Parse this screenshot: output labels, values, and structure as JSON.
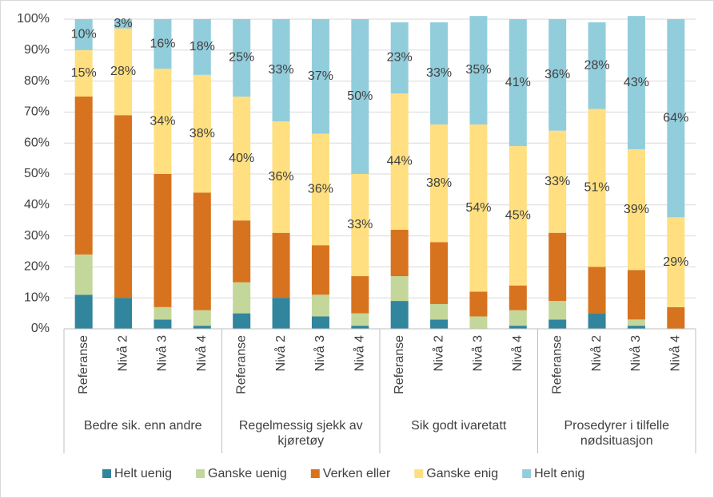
{
  "chart_data": {
    "type": "stacked_bar",
    "groups": [
      {
        "name": "Bedre sik. enn andre",
        "categories": [
          "Referanse",
          "Nivå 2",
          "Nivå 3",
          "Nivå 4"
        ]
      },
      {
        "name": "Regelmessig sjekk av kjøretøy",
        "categories": [
          "Referanse",
          "Nivå 2",
          "Nivå 3",
          "Nivå 4"
        ]
      },
      {
        "name": "Sik godt ivaretatt",
        "categories": [
          "Referanse",
          "Nivå 2",
          "Nivå 3",
          "Nivå 4"
        ]
      },
      {
        "name": "Prosedyrer i tilfelle nødsituasjon",
        "categories": [
          "Referanse",
          "Nivå 2",
          "Nivå 3",
          "Nivå 4"
        ]
      }
    ],
    "series": [
      {
        "name": "Helt uenig",
        "color": "#31859c",
        "values": [
          11,
          10,
          3,
          1,
          5,
          10,
          4,
          1,
          9,
          3,
          0,
          1,
          3,
          5,
          1,
          0
        ]
      },
      {
        "name": "Ganske uenig",
        "color": "#c4d79b",
        "values": [
          13,
          0,
          4,
          5,
          10,
          0,
          7,
          4,
          8,
          5,
          4,
          5,
          6,
          0,
          2,
          0
        ]
      },
      {
        "name": "Verken eller",
        "color": "#d7731e",
        "values": [
          51,
          59,
          43,
          38,
          20,
          21,
          16,
          12,
          15,
          20,
          8,
          8,
          22,
          15,
          16,
          7
        ]
      },
      {
        "name": "Ganske enig",
        "color": "#ffdf7f",
        "values": [
          15,
          28,
          34,
          38,
          40,
          36,
          36,
          33,
          44,
          38,
          54,
          45,
          33,
          51,
          39,
          29
        ],
        "value_labels": [
          "15%",
          "28%",
          "34%",
          "38%",
          "40%",
          "36%",
          "36%",
          "33%",
          "44%",
          "38%",
          "54%",
          "45%",
          "33%",
          "51%",
          "39%",
          "29%"
        ]
      },
      {
        "name": "Helt enig",
        "color": "#92cddc",
        "values": [
          10,
          3,
          16,
          18,
          25,
          33,
          37,
          50,
          23,
          33,
          35,
          41,
          36,
          28,
          43,
          64
        ],
        "value_labels": [
          "10%",
          "3%",
          "16%",
          "18%",
          "25%",
          "33%",
          "37%",
          "50%",
          "23%",
          "33%",
          "35%",
          "41%",
          "36%",
          "28%",
          "43%",
          "64%"
        ]
      }
    ],
    "ylim": [
      0,
      100
    ],
    "yticks": [
      {
        "value": 0,
        "label": "0%"
      },
      {
        "value": 10,
        "label": "10%"
      },
      {
        "value": 20,
        "label": "20%"
      },
      {
        "value": 30,
        "label": "30%"
      },
      {
        "value": 40,
        "label": "40%"
      },
      {
        "value": 50,
        "label": "50%"
      },
      {
        "value": 60,
        "label": "60%"
      },
      {
        "value": 70,
        "label": "70%"
      },
      {
        "value": 80,
        "label": "80%"
      },
      {
        "value": 90,
        "label": "90%"
      },
      {
        "value": 100,
        "label": "100%"
      }
    ],
    "grid": true,
    "legend": "bottom"
  }
}
